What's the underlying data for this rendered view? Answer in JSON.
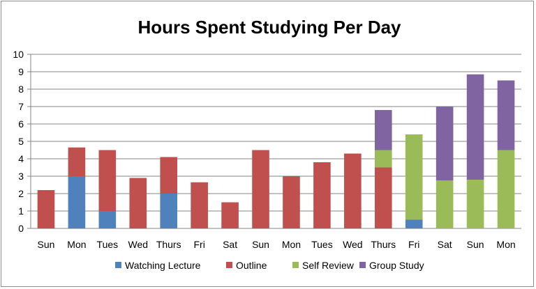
{
  "chart_data": {
    "type": "bar",
    "stacked": true,
    "title": "Hours Spent Studying Per Day",
    "xlabel": "",
    "ylabel": "",
    "ylim": [
      0,
      10
    ],
    "yticks": [
      0,
      1,
      2,
      3,
      4,
      5,
      6,
      7,
      8,
      9,
      10
    ],
    "grid": true,
    "legend_position": "bottom",
    "categories": [
      "Sun",
      "Mon",
      "Tues",
      "Wed",
      "Thurs",
      "Fri",
      "Sat",
      "Sun",
      "Mon",
      "Tues",
      "Wed",
      "Thurs",
      "Fri",
      "Sat",
      "Sun",
      "Mon"
    ],
    "series": [
      {
        "name": "Watching Lecture",
        "color": "#4f81bd",
        "values": [
          0,
          3,
          1,
          0,
          2,
          0,
          0,
          0,
          0,
          0,
          0,
          0,
          0.5,
          0,
          0,
          0
        ]
      },
      {
        "name": "Outline",
        "color": "#c0504d",
        "values": [
          2.2,
          1.65,
          3.5,
          2.9,
          2.1,
          2.65,
          1.5,
          4.5,
          3.0,
          3.8,
          4.3,
          3.5,
          0,
          0,
          0,
          0
        ]
      },
      {
        "name": "Self Review",
        "color": "#9bbb59",
        "values": [
          0,
          0,
          0,
          0,
          0,
          0,
          0,
          0,
          0,
          0,
          0,
          1.0,
          4.9,
          2.75,
          2.8,
          4.5
        ]
      },
      {
        "name": "Group Study",
        "color": "#8064a2",
        "values": [
          0,
          0,
          0,
          0,
          0,
          0,
          0,
          0,
          0,
          0,
          0,
          2.3,
          0,
          4.25,
          6.05,
          4.0
        ]
      }
    ]
  }
}
